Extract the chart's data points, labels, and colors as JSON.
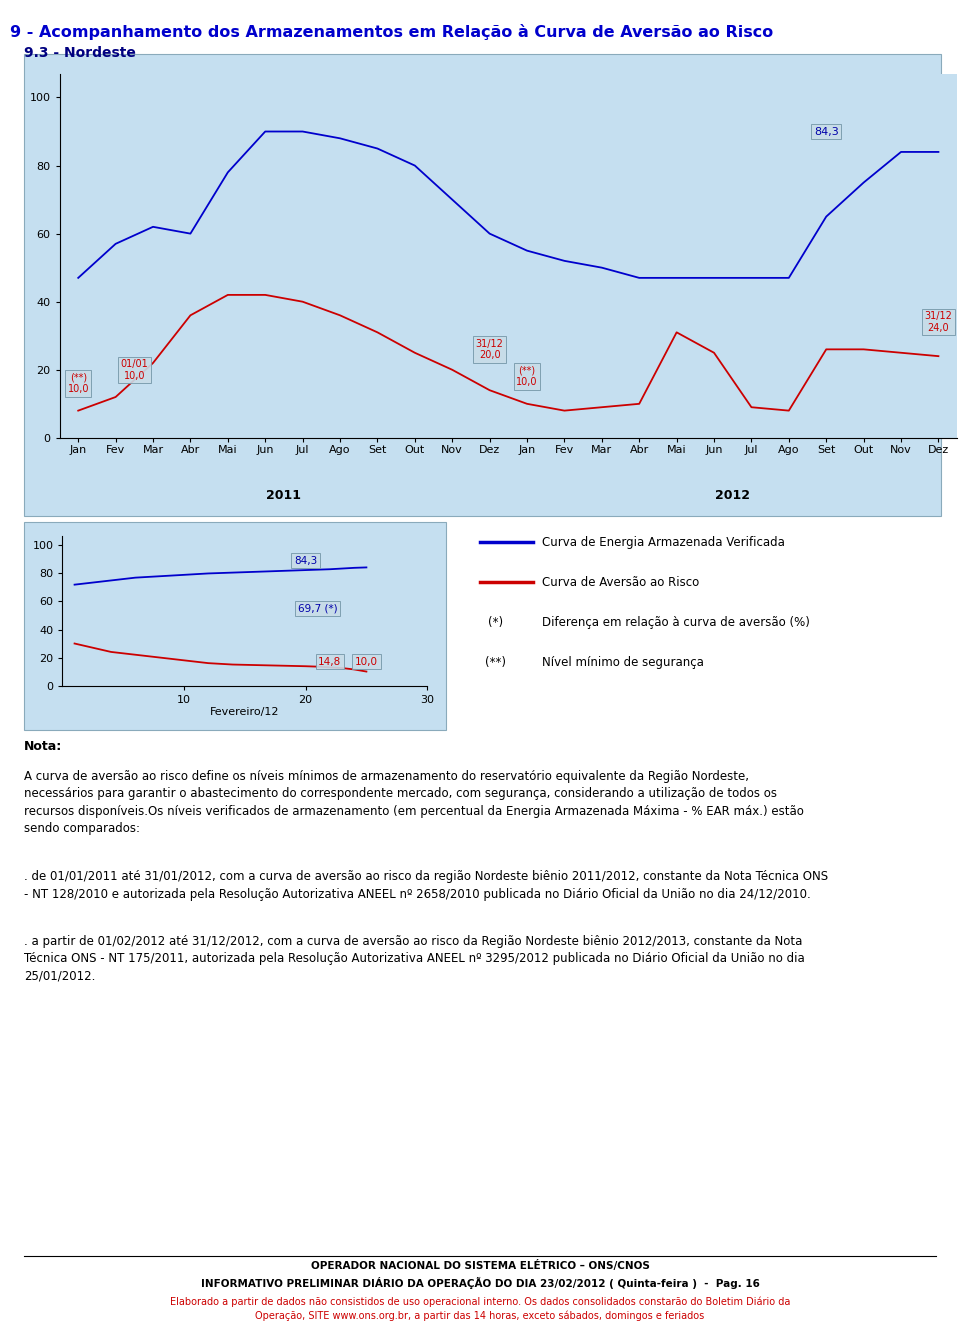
{
  "title": "9 - Acompanhamento dos Armazenamentos em Relação à Curva de Aversão ao Risco",
  "subtitle": "9.3 - Nordeste",
  "title_color": "#0000CC",
  "subtitle_color": "#000080",
  "months_labels": [
    "Jan",
    "Fev",
    "Mar",
    "Abr",
    "Mai",
    "Jun",
    "Jul",
    "Ago",
    "Set",
    "Out",
    "Nov",
    "Dez",
    "Jan",
    "Fev",
    "Mar",
    "Abr",
    "Mai",
    "Jun",
    "Jul",
    "Ago",
    "Set",
    "Out",
    "Nov",
    "Dez"
  ],
  "blue_line_full": [
    47,
    57,
    62,
    60,
    78,
    90,
    90,
    88,
    85,
    80,
    70,
    60,
    55,
    52,
    50,
    47,
    47,
    47,
    47,
    47,
    65,
    75,
    84,
    84
  ],
  "red_line_full": [
    8,
    12,
    22,
    36,
    42,
    42,
    40,
    36,
    31,
    25,
    20,
    14,
    10,
    8,
    9,
    10,
    31,
    25,
    9,
    8,
    26,
    26,
    25,
    24
  ],
  "legend_blue": "Curva de Energia Armazenada Verificada",
  "legend_red": "Curva de Aversão ao Risco",
  "legend_star": "(*)",
  "legend_star_text": "Diferença em relação à curva de aversão (%)",
  "legend_dstar": "(**)",
  "legend_dstar_text": "Nível mínimo de segurança",
  "feb_blue": [
    72,
    73,
    74,
    75,
    76,
    77,
    77.5,
    78,
    78.5,
    79,
    79.5,
    80,
    80.3,
    80.6,
    80.9,
    81.2,
    81.5,
    81.8,
    82.1,
    82.4,
    82.7,
    83.0,
    83.5,
    84.0,
    84.3
  ],
  "feb_red": [
    30,
    28,
    26,
    24,
    23,
    22,
    21,
    20,
    19,
    18,
    17,
    16,
    15.5,
    15,
    14.8,
    14.6,
    14.4,
    14.2,
    14.0,
    13.8,
    13.5,
    13.0,
    12.5,
    11.5,
    10.0
  ],
  "feb_x": [
    1,
    2,
    3,
    4,
    5,
    6,
    7,
    8,
    9,
    10,
    11,
    12,
    13,
    14,
    15,
    16,
    17,
    18,
    19,
    20,
    21,
    22,
    23,
    24,
    25
  ],
  "footer_text1": "OPERADOR NACIONAL DO SISTEMA ELÉTRICO – ONS/CNOS",
  "footer_text2": "INFORMATIVO PRELIMINAR DIÁRIO DA OPERAÇÃO DO DIA 23/02/2012 ( Quinta-feira )  -  Pag. 16",
  "footer_text3": "Elaborado a partir de dados não consistidos de uso operacional interno. Os dados consolidados constarão do Boletim Diário da\nOperação, SITE www.ons.org.br, a partir das 14 horas, exceto sábados, domingos e feriados",
  "nota_text": "Nota:",
  "para1": "A curva de aversão ao risco define os níveis mínimos de armazenamento do reservatório equivalente da Região Nordeste,\nnecessários para garantir o abastecimento do correspondente mercado, com segurança, considerando a utilização de todos os\nrecursos disponíveis.Os níveis verificados de armazenamento (em percentual da Energia Armazenada Máxima - % EAR máx.) estão\nsendo comparados:",
  "para2": ". de 01/01/2011 até 31/01/2012, com a curva de aversão ao risco da região Nordeste biênio 2011/2012, constante da Nota Técnica ONS\n- NT 128/2010 e autorizada pela Resolução Autorizativa ANEEL nº 2658/2010 publicada no Diário Oficial da União no dia 24/12/2010.",
  "para3": ". a partir de 01/02/2012 até 31/12/2012, com a curva de aversão ao risco da Região Nordeste biênio 2012/2013, constante da Nota\nTécnica ONS - NT 175/2011, autorizada pela Resolução Autorizativa ANEEL nº 3295/2012 publicada no Diário Oficial da União no dia\n25/01/2012."
}
